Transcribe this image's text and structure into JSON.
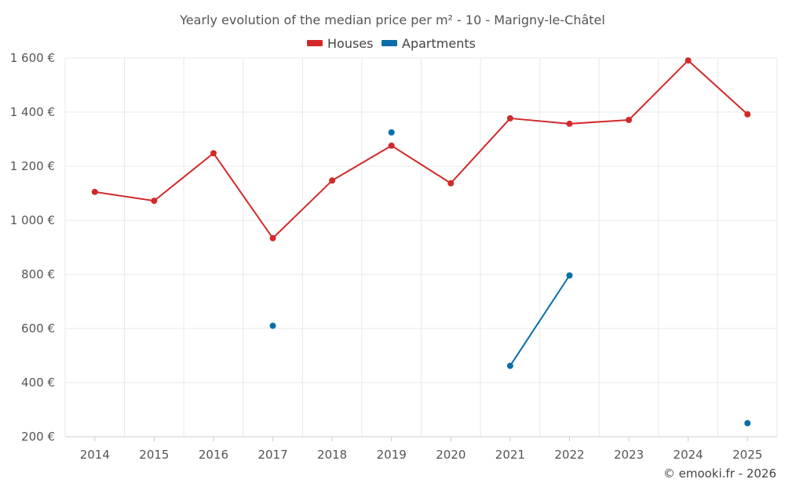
{
  "chart_data": {
    "type": "line",
    "title": "Yearly evolution of the median price per m² - 10 - Marigny-le-Châtel",
    "categories": [
      "2014",
      "2015",
      "2016",
      "2017",
      "2018",
      "2019",
      "2020",
      "2021",
      "2022",
      "2023",
      "2024",
      "2025"
    ],
    "series": [
      {
        "name": "Houses",
        "color": "#d12a2a",
        "values": [
          1105,
          1072,
          1248,
          934,
          1147,
          1276,
          1137,
          1377,
          1357,
          1371,
          1591,
          1392
        ]
      },
      {
        "name": "Apartments",
        "color": "#0b6ea8",
        "values": [
          null,
          null,
          null,
          610,
          null,
          1325,
          null,
          462,
          796,
          null,
          null,
          250
        ]
      }
    ],
    "yticks": [
      200,
      400,
      600,
      800,
      1000,
      1200,
      1400,
      1600
    ],
    "ytick_labels": [
      "200 €",
      "400 €",
      "600 €",
      "800 €",
      "1 000 €",
      "1 200 €",
      "1 400 €",
      "1 600 €"
    ],
    "ylim": [
      200,
      1600
    ],
    "legend_position": "top-center",
    "grid": true,
    "xlabel": "",
    "ylabel": ""
  },
  "credit": "© emooki.fr - 2026"
}
